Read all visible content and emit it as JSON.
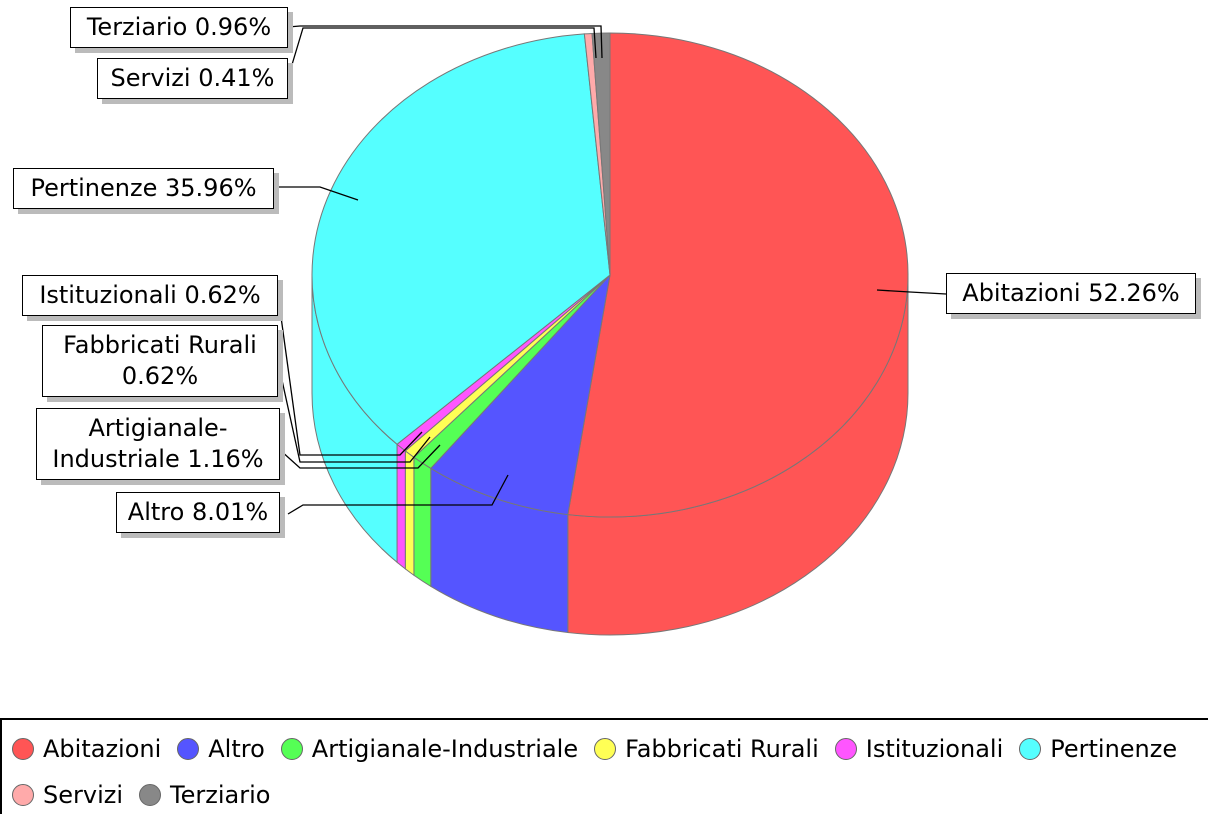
{
  "chart_data": {
    "type": "pie",
    "categories": [
      "Abitazioni",
      "Altro",
      "Artigianale-Industriale",
      "Fabbricati Rurali",
      "Istituzionali",
      "Pertinenze",
      "Servizi",
      "Terziario"
    ],
    "values": [
      52.26,
      8.01,
      1.16,
      0.62,
      0.62,
      35.96,
      0.41,
      0.96
    ],
    "value_labels": [
      "52.26%",
      "8.01%",
      "1.16%",
      "0.62%",
      "0.62%",
      "35.96%",
      "0.41%",
      "0.96%"
    ],
    "colors": [
      "#ff5555",
      "#5555ff",
      "#55ff55",
      "#ffff55",
      "#ff55ff",
      "#55ffff",
      "#ffaaaa",
      "#888888"
    ]
  }
}
